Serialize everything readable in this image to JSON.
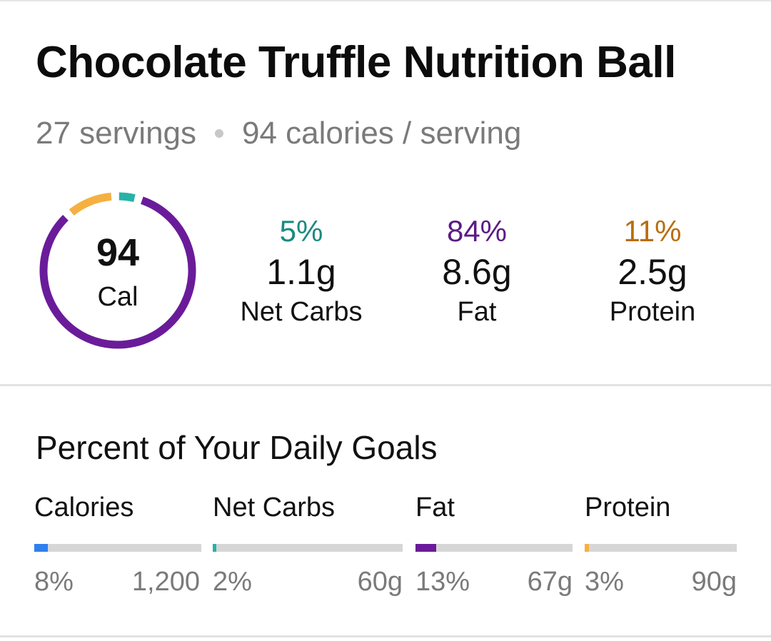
{
  "header": {
    "title": "Chocolate Truffle Nutrition Ball",
    "servings": "27 servings",
    "calories_per_serving": "94 calories / serving"
  },
  "summary": {
    "calories_value": "94",
    "calories_unit": "Cal",
    "ring_segments": [
      {
        "name": "Net Carbs",
        "fraction": 0.05,
        "color": "#26b3a7"
      },
      {
        "name": "Fat",
        "fraction": 0.84,
        "color": "#6a1b9a"
      },
      {
        "name": "Protein",
        "fraction": 0.11,
        "color": "#f5b041"
      }
    ],
    "macros": [
      {
        "percent": "5%",
        "grams": "1.1g",
        "label": "Net Carbs",
        "color": "#1a8a80"
      },
      {
        "percent": "84%",
        "grams": "8.6g",
        "label": "Fat",
        "color": "#5b1a86"
      },
      {
        "percent": "11%",
        "grams": "2.5g",
        "label": "Protein",
        "color": "#b86e0d"
      }
    ]
  },
  "goals": {
    "title": "Percent of Your Daily Goals",
    "items": [
      {
        "label": "Calories",
        "percent": "8%",
        "target": "1,200",
        "fraction": 0.08,
        "color": "#2f80ed"
      },
      {
        "label": "Net Carbs",
        "percent": "2%",
        "target": "60g",
        "fraction": 0.02,
        "color": "#26b3a7"
      },
      {
        "label": "Fat",
        "percent": "13%",
        "target": "67g",
        "fraction": 0.13,
        "color": "#6a1b9a"
      },
      {
        "label": "Protein",
        "percent": "3%",
        "target": "90g",
        "fraction": 0.03,
        "color": "#f5b041"
      }
    ]
  }
}
